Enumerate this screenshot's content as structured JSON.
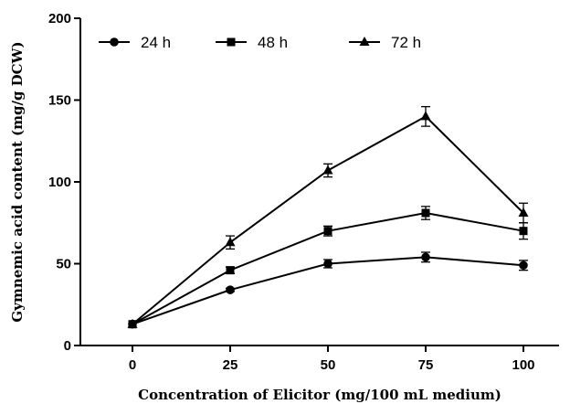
{
  "chart_data": {
    "type": "line",
    "title": "",
    "xlabel": "Concentration of Elicitor (mg/100 mL medium)",
    "ylabel": "Gymnemic acid content (mg/g DCW)",
    "x": [
      0,
      25,
      50,
      75,
      100
    ],
    "x_tick_labels": [
      "0",
      "25",
      "50",
      "75",
      "100"
    ],
    "y_tick_labels": [
      "0",
      "50",
      "100",
      "150",
      "200"
    ],
    "ylim": [
      0,
      200
    ],
    "y_ticks": [
      0,
      50,
      100,
      150,
      200
    ],
    "grid": false,
    "legend_position": "top",
    "series": [
      {
        "name": "24 h",
        "marker": "circle",
        "values": [
          13,
          34,
          50,
          54,
          49
        ],
        "errors": [
          0.5,
          1,
          2.5,
          3,
          3
        ]
      },
      {
        "name": "48 h",
        "marker": "square",
        "values": [
          13,
          46,
          70,
          81,
          70
        ],
        "errors": [
          0.5,
          2,
          3,
          4,
          5
        ]
      },
      {
        "name": "72 h",
        "marker": "triangle",
        "values": [
          13,
          63,
          107,
          140,
          81
        ],
        "errors": [
          0.5,
          4,
          4,
          6,
          6
        ]
      }
    ]
  }
}
